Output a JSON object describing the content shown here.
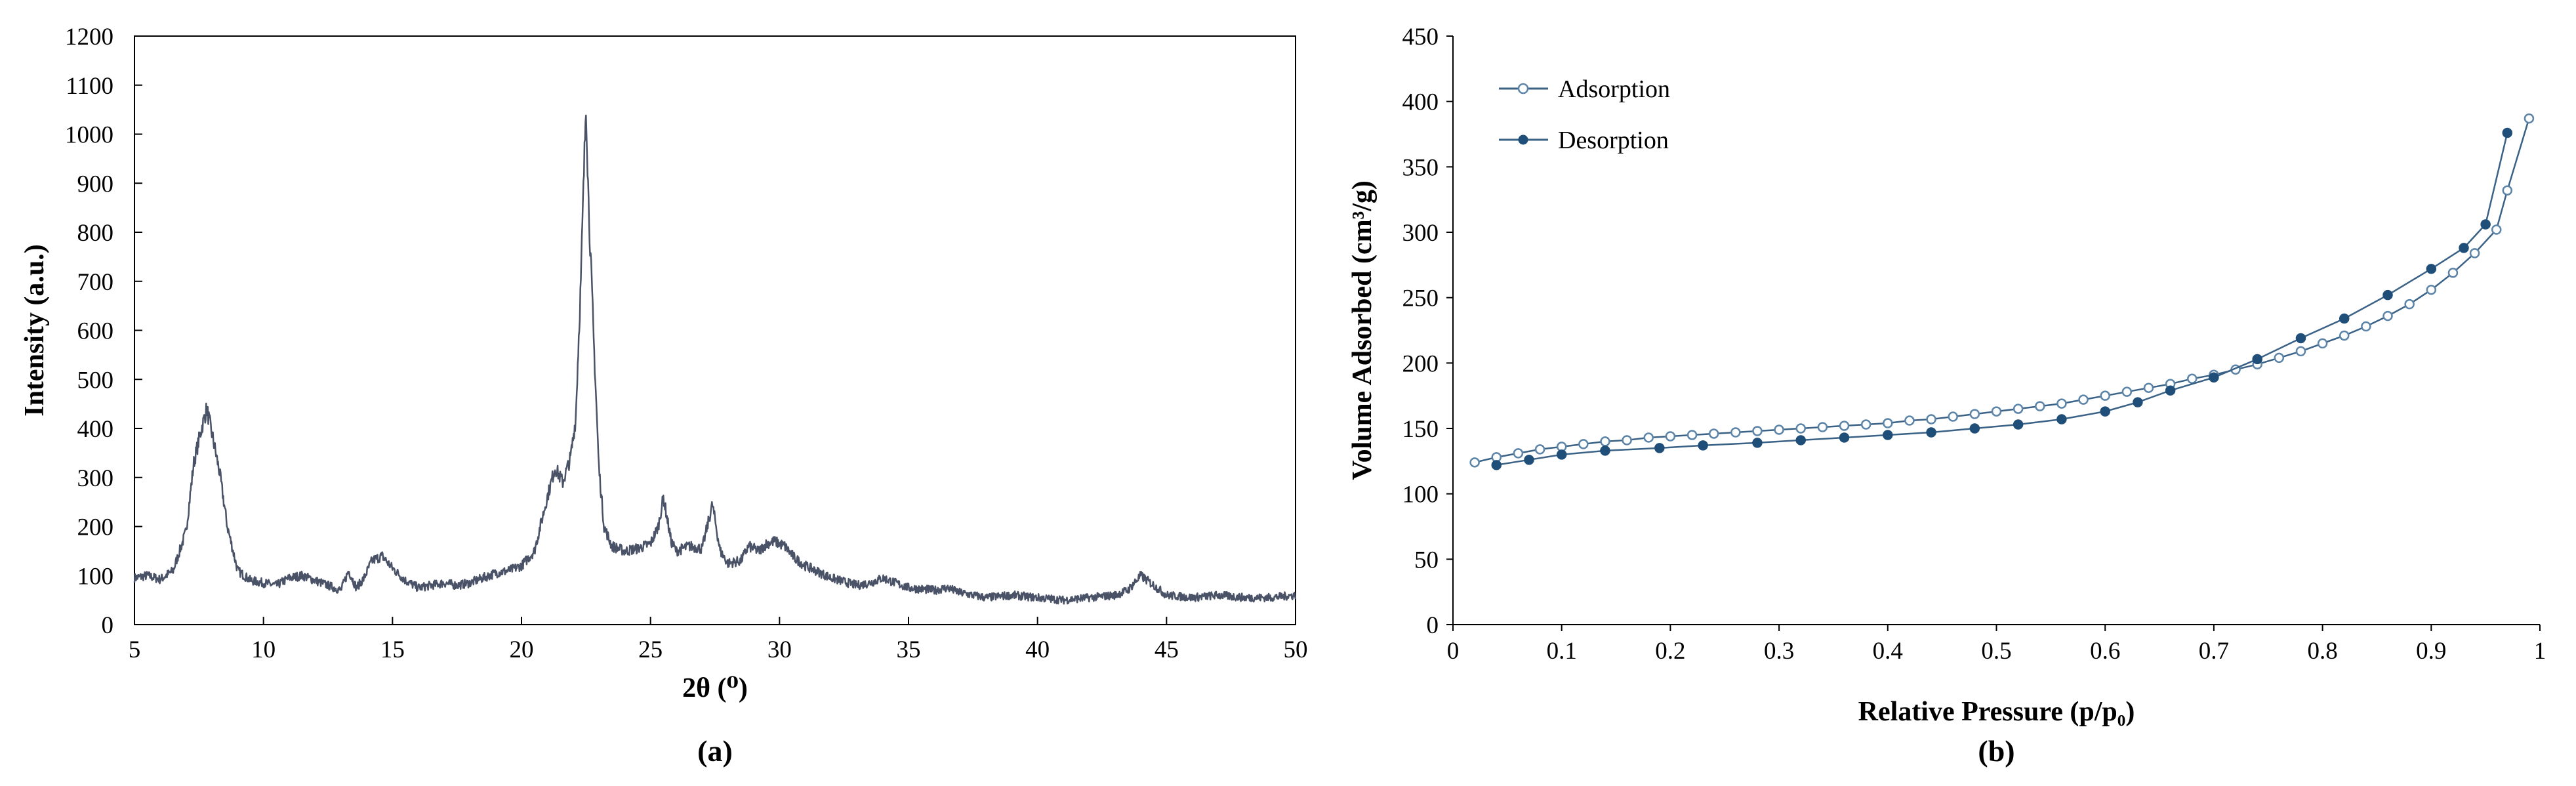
{
  "chart_data": [
    {
      "type": "line",
      "panel_label": "(a)",
      "xlabel": "2θ (⁰)",
      "ylabel": "Intensity (a.u.)",
      "xlim": [
        5,
        50
      ],
      "ylim": [
        0,
        1200
      ],
      "xticks": [
        "5",
        "10",
        "15",
        "20",
        "25",
        "30",
        "35",
        "40",
        "45",
        "50"
      ],
      "yticks": [
        "0",
        "100",
        "200",
        "300",
        "400",
        "500",
        "600",
        "700",
        "800",
        "900",
        "1000",
        "1100",
        "1200"
      ],
      "grid": false,
      "line_color": "#4a5268",
      "series": [
        {
          "x": [
            5,
            5.5,
            6,
            6.5,
            7,
            7.3,
            7.6,
            7.8,
            8,
            8.3,
            8.6,
            9,
            9.5,
            10,
            10.5,
            11,
            11.5,
            12,
            12.5,
            13,
            13.3,
            13.6,
            13.9,
            14.2,
            14.6,
            15,
            15.5,
            16,
            16.5,
            17,
            17.5,
            18,
            18.5,
            19,
            19.5,
            20,
            20.5,
            21,
            21.3,
            21.6,
            21.9,
            22.1,
            22.3,
            22.5,
            22.6,
            22.8,
            23,
            23.2,
            23.5,
            24,
            24.5,
            25,
            25.3,
            25.5,
            25.8,
            26,
            26.5,
            27,
            27.2,
            27.4,
            27.7,
            28,
            28.5,
            28.8,
            29.2,
            29.5,
            29.8,
            30.2,
            30.6,
            31,
            32,
            33,
            33.5,
            34,
            35,
            36,
            36.5,
            37,
            38,
            39,
            40,
            41,
            42,
            43,
            43.5,
            44,
            44.5,
            45,
            46,
            47,
            48,
            49,
            50
          ],
          "y": [
            95,
            100,
            92,
            110,
            190,
            330,
            400,
            440,
            390,
            310,
            200,
            110,
            90,
            85,
            80,
            95,
            100,
            90,
            80,
            70,
            110,
            75,
            95,
            130,
            140,
            115,
            90,
            75,
            80,
            85,
            80,
            85,
            95,
            105,
            110,
            120,
            150,
            260,
            320,
            290,
            340,
            420,
            700,
            1070,
            860,
            580,
            320,
            200,
            160,
            150,
            155,
            165,
            200,
            260,
            170,
            150,
            160,
            155,
            200,
            245,
            150,
            125,
            130,
            160,
            150,
            165,
            170,
            160,
            135,
            120,
            95,
            80,
            85,
            95,
            75,
            70,
            75,
            65,
            55,
            60,
            55,
            50,
            55,
            60,
            70,
            100,
            80,
            60,
            55,
            60,
            55,
            55,
            60
          ]
        }
      ]
    },
    {
      "type": "line",
      "panel_label": "(b)",
      "xlabel": "Relative Pressure (p/p₀)",
      "ylabel": "Volume Adsorbed (cm³/g)",
      "xlim": [
        0,
        1
      ],
      "ylim": [
        0,
        450
      ],
      "xticks": [
        "0",
        "0.1",
        "0.2",
        "0.3",
        "0.4",
        "0.5",
        "0.6",
        "0.7",
        "0.8",
        "0.9",
        "1"
      ],
      "yticks": [
        "0",
        "50",
        "100",
        "150",
        "200",
        "250",
        "300",
        "350",
        "400",
        "450"
      ],
      "grid": false,
      "legend_position": "top-left",
      "line_color": "#3a6186",
      "series": [
        {
          "name": "Adsorption",
          "marker": "open-circle",
          "x": [
            0.02,
            0.04,
            0.06,
            0.08,
            0.1,
            0.12,
            0.14,
            0.16,
            0.18,
            0.2,
            0.22,
            0.24,
            0.26,
            0.28,
            0.3,
            0.32,
            0.34,
            0.36,
            0.38,
            0.4,
            0.42,
            0.44,
            0.46,
            0.48,
            0.5,
            0.52,
            0.54,
            0.56,
            0.58,
            0.6,
            0.62,
            0.64,
            0.66,
            0.68,
            0.7,
            0.72,
            0.74,
            0.76,
            0.78,
            0.8,
            0.82,
            0.84,
            0.86,
            0.88,
            0.9,
            0.92,
            0.94,
            0.96,
            0.97,
            0.99
          ],
          "y": [
            124,
            128,
            131,
            134,
            136,
            138,
            140,
            141,
            143,
            144,
            145,
            146,
            147,
            148,
            149,
            150,
            151,
            152,
            153,
            154,
            156,
            157,
            159,
            161,
            163,
            165,
            167,
            169,
            172,
            175,
            178,
            181,
            184,
            188,
            191,
            195,
            199,
            204,
            209,
            215,
            221,
            228,
            236,
            245,
            256,
            269,
            284,
            302,
            332,
            387
          ]
        },
        {
          "name": "Desorption",
          "marker": "filled-circle",
          "x": [
            0.04,
            0.07,
            0.1,
            0.14,
            0.19,
            0.23,
            0.28,
            0.32,
            0.36,
            0.4,
            0.44,
            0.48,
            0.52,
            0.56,
            0.6,
            0.63,
            0.66,
            0.7,
            0.74,
            0.78,
            0.82,
            0.86,
            0.9,
            0.93,
            0.95,
            0.97
          ],
          "y": [
            122,
            126,
            130,
            133,
            135,
            137,
            139,
            141,
            143,
            145,
            147,
            150,
            153,
            157,
            163,
            170,
            179,
            189,
            203,
            219,
            234,
            252,
            272,
            288,
            306,
            376
          ]
        }
      ]
    }
  ]
}
